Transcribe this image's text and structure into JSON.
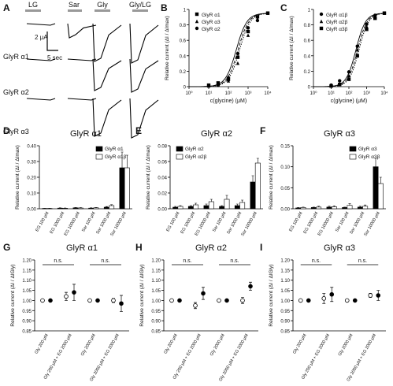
{
  "panel_letters": [
    "A",
    "B",
    "C",
    "D",
    "E",
    "F",
    "G",
    "H",
    "I"
  ],
  "traces": {
    "headers": [
      "LG",
      "Sar",
      "Gly",
      "Gly/LG"
    ],
    "row_labels": [
      "GlyR α1",
      "GlyR α2",
      "GlyR α3"
    ],
    "scale_current": "2 μA",
    "scale_time": "5 sec"
  },
  "chart_data": [
    {
      "panel": "B",
      "type": "scatter",
      "xlabel": "c(glycine) (μM)",
      "ylabel": "Relative current (ΔI / ΔImax)",
      "xscale": "log",
      "xlim": [
        1,
        10000
      ],
      "ylim": [
        0,
        1.05
      ],
      "x_ticks": [
        "10⁰",
        "10¹",
        "10²",
        "10³",
        "10⁴"
      ],
      "y_ticks": [
        "0",
        "0.2",
        "0.4",
        "0.6",
        "0.8",
        "1"
      ],
      "legend_position": "top-left",
      "series": [
        {
          "name": "GlyR α1",
          "marker": "square",
          "x": [
            10,
            30,
            100,
            300,
            1000,
            3000,
            10000
          ],
          "y": [
            0.02,
            0.05,
            0.1,
            0.4,
            0.75,
            0.95,
            1.0
          ]
        },
        {
          "name": "GlyR α3",
          "marker": "triangle",
          "x": [
            10,
            30,
            100,
            300,
            1000,
            3000,
            10000
          ],
          "y": [
            0.01,
            0.03,
            0.08,
            0.32,
            0.7,
            0.92,
            1.0
          ]
        },
        {
          "name": "GlyR α2",
          "marker": "circle",
          "x": [
            10,
            30,
            100,
            300,
            1000,
            3000,
            10000
          ],
          "y": [
            0.01,
            0.02,
            0.12,
            0.45,
            0.8,
            0.9,
            1.0
          ]
        }
      ]
    },
    {
      "panel": "C",
      "type": "scatter",
      "xlabel": "c(glycine) (μM)",
      "ylabel": "Relative current (ΔI / ΔImax)",
      "xscale": "log",
      "xlim": [
        1,
        10000
      ],
      "ylim": [
        0,
        1.05
      ],
      "x_ticks": [
        "10⁰",
        "10¹",
        "10²",
        "10³",
        "10⁴"
      ],
      "y_ticks": [
        "0",
        "0.2",
        "0.4",
        "0.6",
        "0.8",
        "1"
      ],
      "legend_position": "top-left",
      "series": [
        {
          "name": "GlyR α1β",
          "marker": "circle",
          "x": [
            10,
            30,
            100,
            300,
            1000,
            3000,
            10000
          ],
          "y": [
            0.02,
            0.08,
            0.2,
            0.55,
            0.85,
            0.97,
            1.0
          ]
        },
        {
          "name": "GlyR α2β",
          "marker": "triangle",
          "x": [
            10,
            30,
            100,
            300,
            1000,
            3000,
            10000
          ],
          "y": [
            0.01,
            0.04,
            0.15,
            0.5,
            0.82,
            0.95,
            1.0
          ]
        },
        {
          "name": "GlyR α3β",
          "marker": "square",
          "x": [
            10,
            30,
            100,
            300,
            1000,
            3000,
            10000
          ],
          "y": [
            0.01,
            0.03,
            0.1,
            0.42,
            0.78,
            0.93,
            1.0
          ]
        }
      ]
    },
    {
      "panel": "D",
      "type": "bar",
      "title": "GlyR α1",
      "ylabel": "Relative current (ΔI / ΔImax)",
      "ylim": [
        0,
        0.4
      ],
      "y_ticks": [
        "0.00",
        "0.10",
        "0.20",
        "0.30",
        "0.40"
      ],
      "categories": [
        "EG 100 μM",
        "EG 1000 μM",
        "EG 10000 μM",
        "Sar 100 μM",
        "Sar 1000 μM",
        "Sar 10000 μM"
      ],
      "legend_position": "top-right",
      "series": [
        {
          "name": "GlyR α1",
          "fill": "#000000",
          "values": [
            0.002,
            0.004,
            0.006,
            0.004,
            0.01,
            0.26
          ],
          "errors": [
            0.001,
            0.002,
            0.002,
            0.002,
            0.004,
            0.1
          ]
        },
        {
          "name": "GlyR α1β",
          "fill": "#ffffff",
          "values": [
            0.002,
            0.003,
            0.005,
            0.006,
            0.02,
            0.26
          ],
          "errors": [
            0.001,
            0.002,
            0.002,
            0.002,
            0.006,
            0.08
          ]
        }
      ]
    },
    {
      "panel": "E",
      "type": "bar",
      "title": "GlyR α2",
      "ylabel": "Relative current (ΔI / ΔImax)",
      "ylim": [
        0,
        0.08
      ],
      "y_ticks": [
        "0.00",
        "0.02",
        "0.04",
        "0.06",
        "0.08"
      ],
      "categories": [
        "EG 100 μM",
        "EG 1000 μM",
        "EG 10000 μM",
        "Sar 100 μM",
        "Sar 1000 μM",
        "Sar 10000 μM"
      ],
      "legend_position": "top-left",
      "series": [
        {
          "name": "GlyR α2",
          "fill": "#000000",
          "values": [
            0.002,
            0.003,
            0.004,
            0.003,
            0.004,
            0.034
          ],
          "errors": [
            0.001,
            0.001,
            0.002,
            0.001,
            0.002,
            0.008
          ]
        },
        {
          "name": "GlyR α2β",
          "fill": "#ffffff",
          "values": [
            0.003,
            0.005,
            0.009,
            0.012,
            0.008,
            0.058
          ],
          "errors": [
            0.001,
            0.002,
            0.003,
            0.005,
            0.003,
            0.006
          ]
        }
      ]
    },
    {
      "panel": "F",
      "type": "bar",
      "title": "GlyR α3",
      "ylabel": "Relative current (ΔI / ΔImax)",
      "ylim": [
        0,
        0.15
      ],
      "y_ticks": [
        "0.00",
        "0.05",
        "0.10",
        "0.15"
      ],
      "categories": [
        "EG 100 μM",
        "EG 1000 μM",
        "EG 10000 μM",
        "Sar 100 μM",
        "Sar 1000 μM",
        "Sar 10000 μM"
      ],
      "legend_position": "top-right",
      "series": [
        {
          "name": "GlyR α3",
          "fill": "#000000",
          "values": [
            0.002,
            0.003,
            0.004,
            0.003,
            0.004,
            0.1
          ],
          "errors": [
            0.001,
            0.001,
            0.002,
            0.001,
            0.002,
            0.02
          ]
        },
        {
          "name": "GlyR α3β",
          "fill": "#ffffff",
          "values": [
            0.003,
            0.004,
            0.005,
            0.008,
            0.006,
            0.06
          ],
          "errors": [
            0.001,
            0.002,
            0.002,
            0.004,
            0.003,
            0.015
          ]
        }
      ]
    },
    {
      "panel": "G",
      "type": "scatter",
      "title": "GlyR α1",
      "ylabel": "Relative current (ΔI / ΔIGly)",
      "ylim": [
        0.85,
        1.2
      ],
      "y_ticks": [
        "0.85",
        "0.90",
        "0.95",
        "1.00",
        "1.05",
        "1.10",
        "1.15",
        "1.20"
      ],
      "categories": [
        "Gly 200 μM",
        "Gly 200 μM + EG 2000 μM",
        "Gly 2000 μM",
        "Gly 2000 μM + EG 2000 μM"
      ],
      "significance": [
        "n.s.",
        "n.s."
      ],
      "series": [
        {
          "name": "open",
          "marker": "open-circle",
          "values": [
            1.0,
            1.02,
            1.0,
            1.0
          ],
          "errors": [
            0,
            0.02,
            0,
            0.01
          ]
        },
        {
          "name": "filled",
          "marker": "filled-circle",
          "values": [
            1.0,
            1.04,
            1.0,
            0.985
          ],
          "errors": [
            0,
            0.04,
            0,
            0.04
          ]
        }
      ]
    },
    {
      "panel": "H",
      "type": "scatter",
      "title": "GlyR α2",
      "ylabel": "Relative current (ΔI / ΔIGly)",
      "ylim": [
        0.85,
        1.2
      ],
      "y_ticks": [
        "0.85",
        "0.90",
        "0.95",
        "1.00",
        "1.05",
        "1.10",
        "1.15",
        "1.20"
      ],
      "categories": [
        "Gly 200 μM",
        "Gly 200 μM + EG 2000 μM",
        "Gly 2000 μM",
        "Gly 2000 μM + EG 2000 μM"
      ],
      "significance": [
        "n.s.",
        "n.s."
      ],
      "series": [
        {
          "name": "open",
          "marker": "open-circle",
          "values": [
            1.0,
            0.975,
            1.0,
            1.0
          ],
          "errors": [
            0,
            0.015,
            0,
            0.015
          ]
        },
        {
          "name": "filled",
          "marker": "filled-circle",
          "values": [
            1.0,
            1.035,
            1.0,
            1.07
          ],
          "errors": [
            0,
            0.03,
            0,
            0.02
          ]
        }
      ]
    },
    {
      "panel": "I",
      "type": "scatter",
      "title": "GlyR α3",
      "ylabel": "Relative current (ΔI / ΔIGly)",
      "ylim": [
        0.85,
        1.2
      ],
      "y_ticks": [
        "0.85",
        "0.90",
        "0.95",
        "1.00",
        "1.05",
        "1.10",
        "1.15",
        "1.20"
      ],
      "categories": [
        "Gly 200 μM",
        "Gly 200 μM + EG 2000 μM",
        "Gly 2000 μM",
        "Gly 2000 μM + EG 2000 μM"
      ],
      "significance": [
        "n.s.",
        "n.s."
      ],
      "series": [
        {
          "name": "open",
          "marker": "open-circle",
          "values": [
            1.0,
            1.01,
            1.0,
            1.025
          ],
          "errors": [
            0,
            0.025,
            0,
            0.01
          ]
        },
        {
          "name": "filled",
          "marker": "filled-circle",
          "values": [
            1.0,
            1.03,
            1.0,
            1.025
          ],
          "errors": [
            0,
            0.035,
            0,
            0.025
          ]
        }
      ]
    }
  ]
}
